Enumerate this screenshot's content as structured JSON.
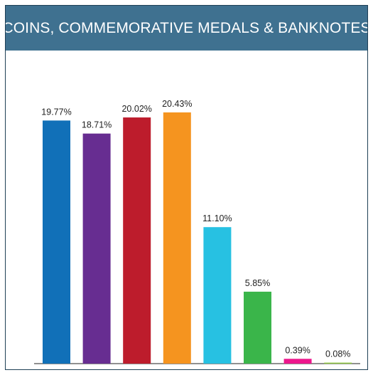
{
  "header": {
    "title": "COINS, COMMEMORATIVE MEDALS & BANKNOTES"
  },
  "chart_data": {
    "type": "bar",
    "title": "COINS, COMMEMORATIVE MEDALS & BANKNOTES",
    "categories": [],
    "values": [
      19.77,
      18.71,
      20.02,
      20.43,
      11.1,
      5.85,
      0.39,
      0.08
    ],
    "labels": [
      "19.77%",
      "18.71%",
      "20.02%",
      "20.43%",
      "11.10%",
      "5.85%",
      "0.39%",
      "0.08%"
    ],
    "colors": [
      "#1170b8",
      "#672d91",
      "#bd1c2c",
      "#f5941f",
      "#27c1e2",
      "#3ab54a",
      "#ec178c",
      "#8dc640"
    ],
    "xlabel": "",
    "ylabel": "",
    "grid": false,
    "legend": "none"
  }
}
